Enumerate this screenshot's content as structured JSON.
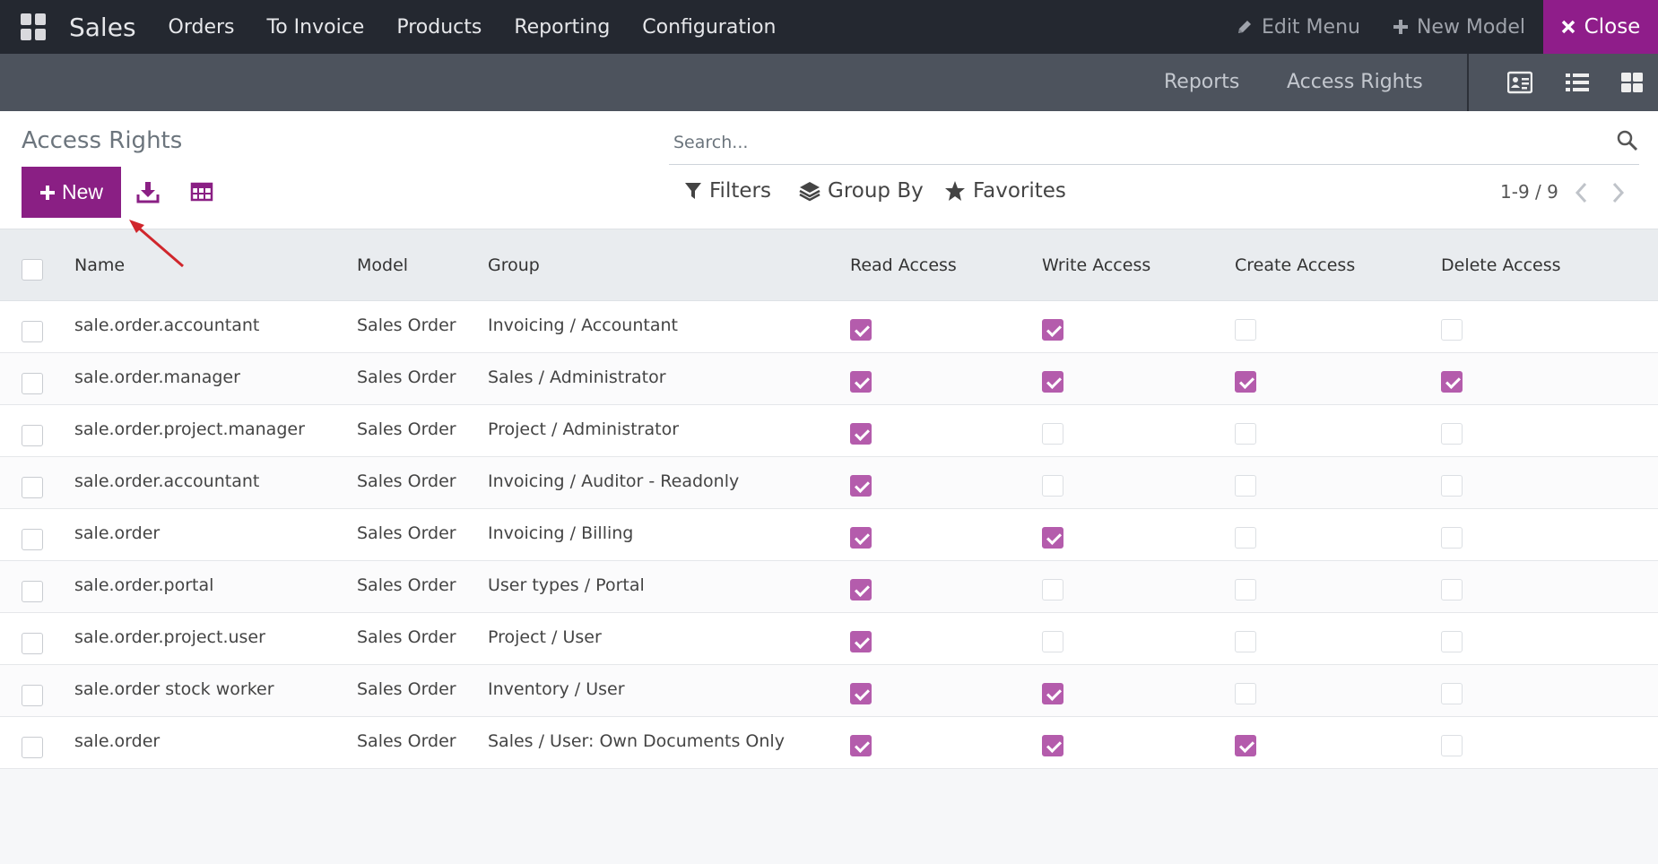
{
  "topnav": {
    "app_name": "Sales",
    "menu": [
      "Orders",
      "To Invoice",
      "Products",
      "Reporting",
      "Configuration"
    ],
    "edit_menu": "Edit Menu",
    "new_model": "New Model",
    "close": "Close"
  },
  "subnav": {
    "reports": "Reports",
    "access_rights": "Access Rights"
  },
  "control": {
    "title": "Access Rights",
    "new_label": "New",
    "search_placeholder": "Search...",
    "filters": "Filters",
    "group_by": "Group By",
    "favorites": "Favorites",
    "pager": "1-9 / 9"
  },
  "table": {
    "headers": [
      "Name",
      "Model",
      "Group",
      "Read Access",
      "Write Access",
      "Create Access",
      "Delete Access"
    ],
    "rows": [
      {
        "name": "sale.order.accountant",
        "model": "Sales Order",
        "group": "Invoicing / Accountant",
        "read": true,
        "write": true,
        "create": false,
        "delete": false
      },
      {
        "name": "sale.order.manager",
        "model": "Sales Order",
        "group": "Sales / Administrator",
        "read": true,
        "write": true,
        "create": true,
        "delete": true
      },
      {
        "name": "sale.order.project.manager",
        "model": "Sales Order",
        "group": "Project / Administrator",
        "read": true,
        "write": false,
        "create": false,
        "delete": false
      },
      {
        "name": "sale.order.accountant",
        "model": "Sales Order",
        "group": "Invoicing / Auditor - Readonly",
        "read": true,
        "write": false,
        "create": false,
        "delete": false
      },
      {
        "name": "sale.order",
        "model": "Sales Order",
        "group": "Invoicing / Billing",
        "read": true,
        "write": true,
        "create": false,
        "delete": false
      },
      {
        "name": "sale.order.portal",
        "model": "Sales Order",
        "group": "User types / Portal",
        "read": true,
        "write": false,
        "create": false,
        "delete": false
      },
      {
        "name": "sale.order.project.user",
        "model": "Sales Order",
        "group": "Project / User",
        "read": true,
        "write": false,
        "create": false,
        "delete": false
      },
      {
        "name": "sale.order stock worker",
        "model": "Sales Order",
        "group": "Inventory / User",
        "read": true,
        "write": true,
        "create": false,
        "delete": false
      },
      {
        "name": "sale.order",
        "model": "Sales Order",
        "group": "Sales / User: Own Documents Only",
        "read": true,
        "write": true,
        "create": true,
        "delete": false
      }
    ]
  },
  "colors": {
    "accent": "#8a1f84",
    "checkbox_on": "#b45cac",
    "arrow": "#d0262c"
  }
}
